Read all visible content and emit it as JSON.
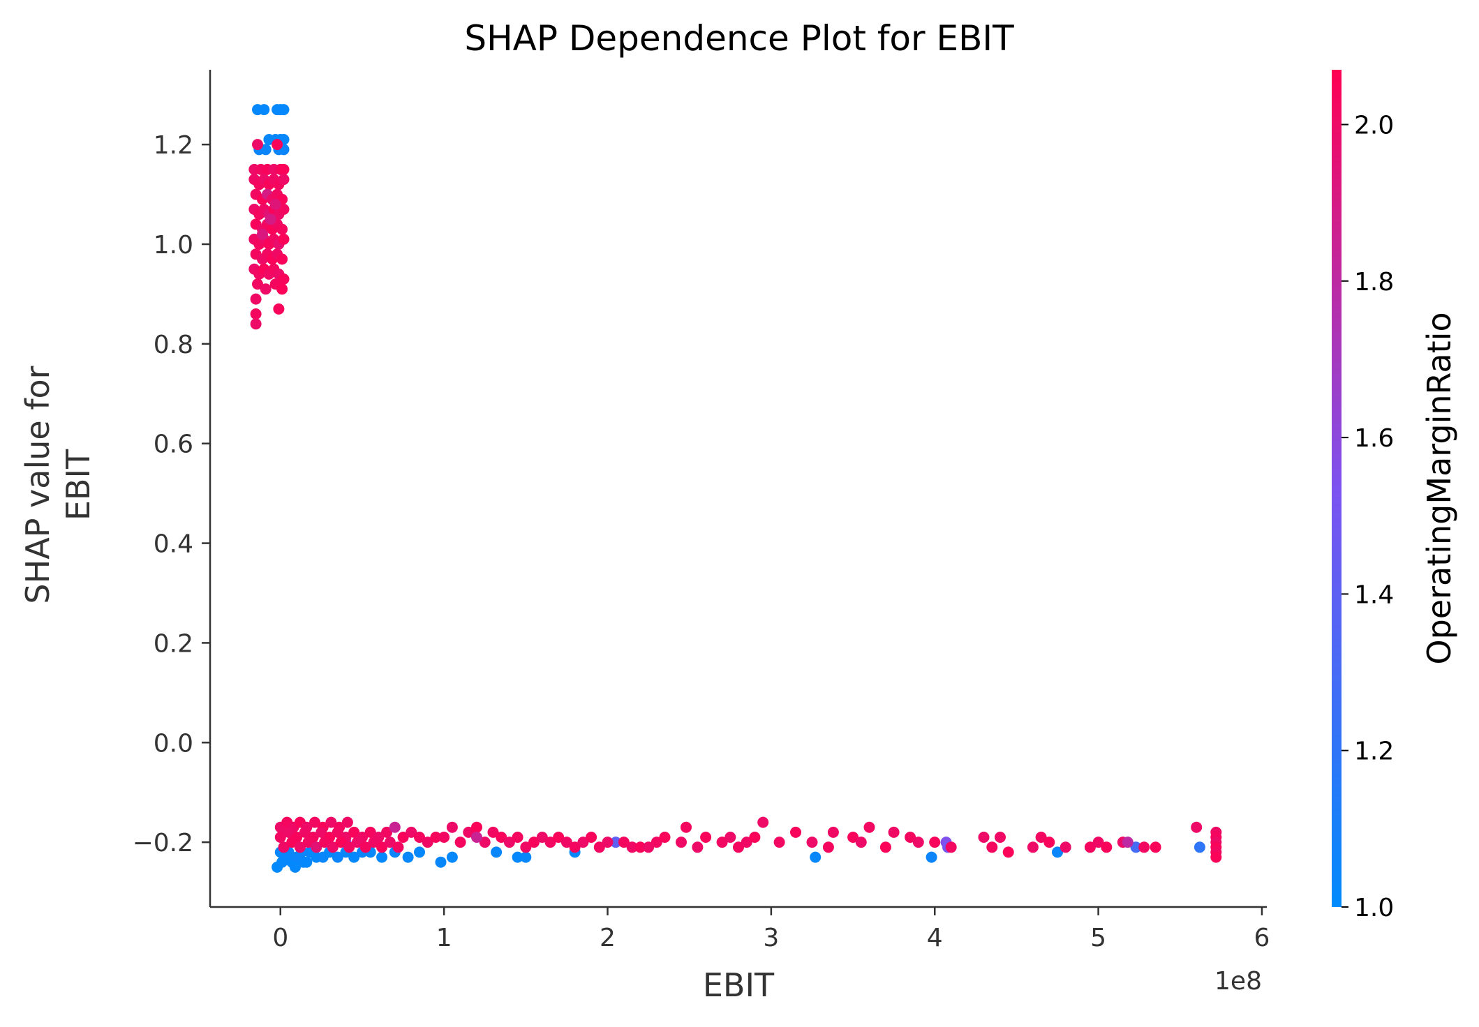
{
  "chart_data": {
    "type": "scatter",
    "title": "SHAP Dependence Plot for EBIT",
    "xlabel": "EBIT",
    "x_offset_label": "1e8",
    "ylabel_lines": [
      "SHAP value for",
      "EBIT"
    ],
    "xlim": [
      -0.43,
      6.03
    ],
    "ylim": [
      -0.33,
      1.35
    ],
    "x_ticks": [
      0,
      1,
      2,
      3,
      4,
      5,
      6
    ],
    "x_tick_labels": [
      "0",
      "1",
      "2",
      "3",
      "4",
      "5",
      "6"
    ],
    "y_ticks": [
      -0.2,
      0.0,
      0.2,
      0.4,
      0.6,
      0.8,
      1.0,
      1.2
    ],
    "y_tick_labels": [
      "−0.2",
      "0.0",
      "0.2",
      "0.4",
      "0.6",
      "0.8",
      "1.0",
      "1.2"
    ],
    "grid": false,
    "colorbar": {
      "label": "OperatingMarginRatio",
      "range": [
        1.0,
        2.07
      ],
      "ticks": [
        1.0,
        1.2,
        1.4,
        1.6,
        1.8,
        2.0
      ],
      "tick_labels": [
        "1.0",
        "1.2",
        "1.4",
        "1.6",
        "1.8",
        "2.0"
      ],
      "color_low": "#008afb",
      "color_mid": "#7c52f0",
      "color_high": "#ff0052"
    },
    "series": [
      {
        "points": [
          [
            -0.14,
            1.27,
            1.02
          ],
          [
            -0.1,
            1.27,
            1.02
          ],
          [
            -0.02,
            1.27,
            1.02
          ],
          [
            0.0,
            1.27,
            1.02
          ],
          [
            0.02,
            1.27,
            1.02
          ],
          [
            -0.07,
            1.21,
            1.03
          ],
          [
            -0.03,
            1.21,
            1.03
          ],
          [
            0.0,
            1.21,
            1.03
          ],
          [
            0.02,
            1.21,
            1.03
          ],
          [
            -0.13,
            1.19,
            1.05
          ],
          [
            -0.09,
            1.19,
            1.05
          ],
          [
            -0.01,
            1.19,
            1.05
          ],
          [
            0.02,
            1.19,
            1.05
          ],
          [
            -0.14,
            1.2,
            2.0
          ],
          [
            -0.02,
            1.2,
            2.05
          ],
          [
            -0.16,
            1.15,
            2.0
          ],
          [
            -0.12,
            1.15,
            2.02
          ],
          [
            -0.08,
            1.15,
            2.04
          ],
          [
            -0.04,
            1.15,
            2.0
          ],
          [
            0.0,
            1.15,
            2.03
          ],
          [
            0.02,
            1.15,
            2.05
          ],
          [
            -0.16,
            1.13,
            2.01
          ],
          [
            -0.13,
            1.12,
            2.03
          ],
          [
            -0.1,
            1.13,
            2.0
          ],
          [
            -0.07,
            1.12,
            2.04
          ],
          [
            -0.04,
            1.13,
            2.01
          ],
          [
            -0.01,
            1.12,
            2.03
          ],
          [
            0.02,
            1.13,
            2.0
          ],
          [
            -0.15,
            1.1,
            2.02
          ],
          [
            -0.11,
            1.09,
            2.05
          ],
          [
            -0.08,
            1.1,
            1.9
          ],
          [
            -0.05,
            1.09,
            2.0
          ],
          [
            -0.02,
            1.1,
            2.02
          ],
          [
            0.01,
            1.09,
            2.04
          ],
          [
            -0.16,
            1.07,
            2.0
          ],
          [
            -0.13,
            1.06,
            2.03
          ],
          [
            -0.1,
            1.07,
            2.01
          ],
          [
            -0.07,
            1.06,
            1.95
          ],
          [
            -0.04,
            1.07,
            2.04
          ],
          [
            -0.01,
            1.06,
            2.0
          ],
          [
            0.02,
            1.07,
            2.02
          ],
          [
            -0.15,
            1.04,
            2.04
          ],
          [
            -0.11,
            1.03,
            2.0
          ],
          [
            -0.08,
            1.04,
            2.02
          ],
          [
            -0.05,
            1.03,
            2.05
          ],
          [
            -0.02,
            1.04,
            2.01
          ],
          [
            0.01,
            1.03,
            2.03
          ],
          [
            -0.16,
            1.01,
            2.01
          ],
          [
            -0.13,
            1.0,
            2.03
          ],
          [
            -0.1,
            1.01,
            2.0
          ],
          [
            -0.07,
            1.0,
            2.04
          ],
          [
            -0.04,
            1.01,
            2.02
          ],
          [
            -0.01,
            1.0,
            1.98
          ],
          [
            0.02,
            1.01,
            2.05
          ],
          [
            -0.15,
            0.98,
            2.03
          ],
          [
            -0.11,
            0.97,
            2.0
          ],
          [
            -0.08,
            0.98,
            2.02
          ],
          [
            -0.05,
            0.97,
            2.05
          ],
          [
            -0.02,
            0.98,
            2.01
          ],
          [
            0.01,
            0.97,
            2.04
          ],
          [
            -0.16,
            0.95,
            2.0
          ],
          [
            -0.13,
            0.94,
            2.02
          ],
          [
            -0.1,
            0.95,
            2.05
          ],
          [
            -0.07,
            0.94,
            2.01
          ],
          [
            -0.04,
            0.95,
            2.03
          ],
          [
            -0.01,
            0.94,
            2.0
          ],
          [
            0.02,
            0.93,
            2.04
          ],
          [
            -0.14,
            0.92,
            2.02
          ],
          [
            -0.09,
            0.91,
            2.0
          ],
          [
            -0.03,
            0.92,
            2.03
          ],
          [
            0.01,
            0.91,
            2.05
          ],
          [
            -0.15,
            0.89,
            2.01
          ],
          [
            -0.15,
            0.86,
            2.03
          ],
          [
            -0.15,
            0.84,
            2.0
          ],
          [
            -0.01,
            0.87,
            2.04
          ],
          [
            -0.06,
            1.05,
            1.9
          ],
          [
            -0.11,
            1.02,
            1.92
          ],
          [
            -0.03,
            1.08,
            1.94
          ],
          [
            -0.02,
            -0.25,
            1.01
          ],
          [
            0.01,
            -0.24,
            1.02
          ],
          [
            0.04,
            -0.23,
            1.03
          ],
          [
            0.07,
            -0.24,
            1.02
          ],
          [
            0.1,
            -0.23,
            1.05
          ],
          [
            0.14,
            -0.24,
            1.03
          ],
          [
            0.18,
            -0.22,
            1.05
          ],
          [
            0.22,
            -0.23,
            1.02
          ],
          [
            0.26,
            -0.23,
            1.04
          ],
          [
            0.3,
            -0.22,
            1.02
          ],
          [
            0.35,
            -0.23,
            1.05
          ],
          [
            0.4,
            -0.22,
            1.03
          ],
          [
            0.45,
            -0.23,
            1.02
          ],
          [
            0.5,
            -0.22,
            1.05
          ],
          [
            0.55,
            -0.22,
            1.03
          ],
          [
            0.62,
            -0.23,
            1.02
          ],
          [
            0.7,
            -0.22,
            1.05
          ],
          [
            0.78,
            -0.23,
            1.03
          ],
          [
            0.85,
            -0.22,
            1.02
          ],
          [
            0.0,
            -0.22,
            1.03
          ],
          [
            0.05,
            -0.22,
            1.04
          ],
          [
            0.09,
            -0.25,
            1.02
          ],
          [
            0.13,
            -0.22,
            1.05
          ],
          [
            0.16,
            -0.24,
            1.02
          ],
          [
            0.2,
            -0.22,
            1.01
          ],
          [
            0.98,
            -0.24,
            1.03
          ],
          [
            1.05,
            -0.23,
            1.02
          ],
          [
            1.32,
            -0.22,
            1.04
          ],
          [
            1.45,
            -0.23,
            1.02
          ],
          [
            1.5,
            -0.23,
            1.03
          ],
          [
            1.8,
            -0.22,
            1.02
          ],
          [
            3.27,
            -0.23,
            1.03
          ],
          [
            3.98,
            -0.23,
            1.05
          ],
          [
            4.75,
            -0.22,
            1.04
          ],
          [
            5.62,
            -0.21,
            1.2
          ],
          [
            4.07,
            -0.2,
            1.55
          ],
          [
            4.08,
            -0.21,
            1.5
          ],
          [
            5.23,
            -0.21,
            1.3
          ],
          [
            2.05,
            -0.2,
            1.4
          ],
          [
            0.4,
            -0.2,
            1.6
          ],
          [
            0.0,
            -0.17,
            2.0
          ],
          [
            0.04,
            -0.16,
            2.03
          ],
          [
            0.08,
            -0.17,
            2.01
          ],
          [
            0.12,
            -0.16,
            2.04
          ],
          [
            0.16,
            -0.17,
            2.0
          ],
          [
            0.21,
            -0.16,
            2.02
          ],
          [
            0.26,
            -0.17,
            2.05
          ],
          [
            0.31,
            -0.16,
            2.0
          ],
          [
            0.36,
            -0.17,
            2.03
          ],
          [
            0.41,
            -0.16,
            2.01
          ],
          [
            0.0,
            -0.19,
            2.02
          ],
          [
            0.05,
            -0.18,
            2.0
          ],
          [
            0.1,
            -0.19,
            2.04
          ],
          [
            0.15,
            -0.18,
            2.01
          ],
          [
            0.2,
            -0.19,
            2.03
          ],
          [
            0.25,
            -0.18,
            2.0
          ],
          [
            0.3,
            -0.19,
            2.05
          ],
          [
            0.35,
            -0.18,
            2.02
          ],
          [
            0.4,
            -0.19,
            2.0
          ],
          [
            0.45,
            -0.18,
            2.04
          ],
          [
            0.5,
            -0.19,
            2.01
          ],
          [
            0.55,
            -0.18,
            2.03
          ],
          [
            0.6,
            -0.19,
            2.0
          ],
          [
            0.65,
            -0.18,
            2.02
          ],
          [
            0.7,
            -0.17,
            1.85
          ],
          [
            0.75,
            -0.19,
            2.04
          ],
          [
            0.8,
            -0.18,
            2.0
          ],
          [
            0.85,
            -0.19,
            2.03
          ],
          [
            0.9,
            -0.2,
            2.01
          ],
          [
            0.95,
            -0.19,
            2.04
          ],
          [
            0.02,
            -0.21,
            2.01
          ],
          [
            0.07,
            -0.2,
            2.04
          ],
          [
            0.12,
            -0.21,
            2.0
          ],
          [
            0.17,
            -0.2,
            2.02
          ],
          [
            0.22,
            -0.21,
            1.95
          ],
          [
            0.27,
            -0.2,
            2.03
          ],
          [
            0.32,
            -0.21,
            2.0
          ],
          [
            0.37,
            -0.2,
            2.05
          ],
          [
            0.42,
            -0.21,
            2.02
          ],
          [
            0.47,
            -0.2,
            2.0
          ],
          [
            0.52,
            -0.21,
            2.03
          ],
          [
            0.57,
            -0.2,
            2.01
          ],
          [
            0.62,
            -0.21,
            2.04
          ],
          [
            0.67,
            -0.2,
            2.0
          ],
          [
            0.72,
            -0.21,
            2.02
          ],
          [
            1.0,
            -0.19,
            2.02
          ],
          [
            1.05,
            -0.17,
            2.0
          ],
          [
            1.1,
            -0.2,
            2.03
          ],
          [
            1.15,
            -0.18,
            2.01
          ],
          [
            1.2,
            -0.17,
            2.05
          ],
          [
            1.25,
            -0.2,
            2.0
          ],
          [
            1.3,
            -0.18,
            2.02
          ],
          [
            1.35,
            -0.19,
            2.04
          ],
          [
            1.4,
            -0.2,
            2.0
          ],
          [
            1.45,
            -0.19,
            2.03
          ],
          [
            1.5,
            -0.21,
            2.01
          ],
          [
            1.55,
            -0.2,
            2.04
          ],
          [
            1.6,
            -0.19,
            2.0
          ],
          [
            1.65,
            -0.2,
            2.02
          ],
          [
            1.7,
            -0.19,
            2.05
          ],
          [
            1.75,
            -0.2,
            2.01
          ],
          [
            1.8,
            -0.21,
            2.03
          ],
          [
            1.85,
            -0.2,
            2.0
          ],
          [
            1.9,
            -0.19,
            2.04
          ],
          [
            1.95,
            -0.21,
            2.02
          ],
          [
            2.0,
            -0.2,
            2.0
          ],
          [
            2.1,
            -0.2,
            2.03
          ],
          [
            2.15,
            -0.21,
            2.01
          ],
          [
            2.2,
            -0.21,
            2.04
          ],
          [
            2.25,
            -0.21,
            2.0
          ],
          [
            2.3,
            -0.2,
            2.02
          ],
          [
            2.35,
            -0.19,
            2.05
          ],
          [
            2.45,
            -0.2,
            2.01
          ],
          [
            2.48,
            -0.17,
            2.03
          ],
          [
            2.55,
            -0.21,
            2.0
          ],
          [
            2.6,
            -0.19,
            2.04
          ],
          [
            2.7,
            -0.2,
            2.02
          ],
          [
            2.75,
            -0.19,
            2.0
          ],
          [
            2.8,
            -0.21,
            2.03
          ],
          [
            2.85,
            -0.2,
            2.01
          ],
          [
            2.9,
            -0.19,
            2.05
          ],
          [
            2.95,
            -0.16,
            2.0
          ],
          [
            3.05,
            -0.2,
            2.02
          ],
          [
            3.15,
            -0.18,
            2.04
          ],
          [
            3.25,
            -0.2,
            2.0
          ],
          [
            3.35,
            -0.21,
            2.03
          ],
          [
            3.38,
            -0.18,
            2.01
          ],
          [
            3.5,
            -0.19,
            2.04
          ],
          [
            3.55,
            -0.2,
            2.0
          ],
          [
            3.6,
            -0.17,
            2.02
          ],
          [
            3.7,
            -0.21,
            2.05
          ],
          [
            3.75,
            -0.18,
            2.01
          ],
          [
            3.85,
            -0.19,
            2.03
          ],
          [
            3.9,
            -0.2,
            2.0
          ],
          [
            4.0,
            -0.2,
            2.04
          ],
          [
            4.1,
            -0.21,
            2.02
          ],
          [
            4.3,
            -0.19,
            2.0
          ],
          [
            4.35,
            -0.21,
            2.03
          ],
          [
            4.4,
            -0.19,
            2.01
          ],
          [
            4.45,
            -0.22,
            2.05
          ],
          [
            4.6,
            -0.21,
            2.0
          ],
          [
            4.65,
            -0.19,
            2.02
          ],
          [
            4.7,
            -0.2,
            2.04
          ],
          [
            4.8,
            -0.21,
            2.0
          ],
          [
            4.95,
            -0.21,
            2.03
          ],
          [
            5.0,
            -0.2,
            2.01
          ],
          [
            5.05,
            -0.21,
            2.04
          ],
          [
            5.15,
            -0.2,
            2.0
          ],
          [
            5.28,
            -0.21,
            2.02
          ],
          [
            5.35,
            -0.21,
            2.05
          ],
          [
            5.6,
            -0.17,
            2.0
          ],
          [
            5.72,
            -0.18,
            2.01
          ],
          [
            5.72,
            -0.19,
            2.03
          ],
          [
            5.72,
            -0.2,
            2.0
          ],
          [
            5.72,
            -0.21,
            2.04
          ],
          [
            5.72,
            -0.22,
            2.02
          ],
          [
            5.72,
            -0.23,
            2.05
          ],
          [
            5.18,
            -0.2,
            1.8
          ],
          [
            1.2,
            -0.19,
            1.85
          ]
        ]
      }
    ]
  }
}
